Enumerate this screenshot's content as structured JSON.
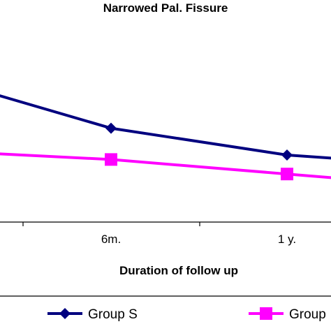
{
  "chart_data": {
    "type": "line",
    "title": "Narrowed Pal. Fissure",
    "xlabel": "Duration of follow up",
    "ylabel": "",
    "categories": [
      "",
      "6m.",
      "1 y.",
      ""
    ],
    "series": [
      {
        "name": "Group S",
        "color": "#00007f",
        "marker": "diamond",
        "values": [
          2.6,
          1.68,
          1.2,
          0.98
        ]
      },
      {
        "name": "Group",
        "color": "#ff00ff",
        "marker": "square",
        "values": [
          1.28,
          1.12,
          0.86,
          0.6
        ]
      }
    ],
    "ylim": [
      0,
      3.6
    ],
    "grid": false,
    "legend_position": "bottom"
  }
}
